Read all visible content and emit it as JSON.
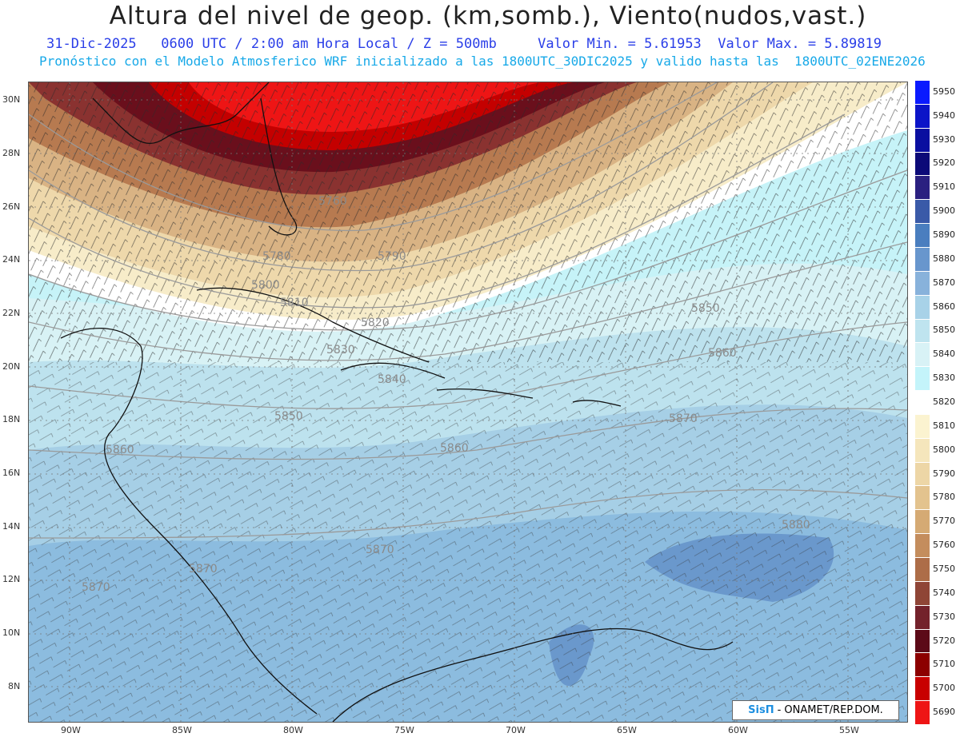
{
  "header": {
    "title": "Altura del nivel de geop. (km,somb.), Viento(nudos,vast.)",
    "line2": "31-Dic-2025   0600 UTC / 2:00 am Hora Local / Z = 500mb     Valor Min. = 5.61953  Valor Max. = 5.89819",
    "line3": "Pronóstico con el Modelo Atmosferico WRF inicializado a las 1800UTC_30DIC2025 y valido hasta las  1800UTC_02ENE2026"
  },
  "map": {
    "lat_ticks": [
      "30N",
      "28N",
      "26N",
      "24N",
      "22N",
      "20N",
      "18N",
      "16N",
      "14N",
      "12N",
      "10N",
      "8N"
    ],
    "lon_ticks": [
      "90W",
      "85W",
      "80W",
      "75W",
      "70W",
      "65W",
      "60W",
      "55W"
    ],
    "contour_labels": [
      "5760",
      "5780",
      "5790",
      "5800",
      "5810",
      "5820",
      "5830",
      "5840",
      "5850",
      "5850",
      "5860",
      "5860",
      "5860",
      "5870",
      "5870",
      "5870",
      "5870",
      "5880"
    ]
  },
  "legend": {
    "levels": [
      "5950",
      "5940",
      "5930",
      "5920",
      "5910",
      "5900",
      "5890",
      "5880",
      "5870",
      "5860",
      "5850",
      "5840",
      "5830",
      "5820",
      "5810",
      "5800",
      "5790",
      "5780",
      "5770",
      "5760",
      "5750",
      "5740",
      "5730",
      "5720",
      "5710",
      "5700",
      "5690"
    ],
    "colors": [
      "#0a1aff",
      "#0b14c8",
      "#0a0fa0",
      "#0c0a78",
      "#2a2080",
      "#3a5aa8",
      "#4a7ebf",
      "#6896cd",
      "#88b2db",
      "#a8d2e8",
      "#bfe4ef",
      "#d8f2f6",
      "#c4f4fa",
      "#ffffff",
      "#fbf3d0",
      "#f5e6bc",
      "#edd6a6",
      "#e3c38e",
      "#d5aa74",
      "#c48d5d",
      "#ad6d48",
      "#8f4536",
      "#73222b",
      "#5c0a18",
      "#8c0000",
      "#c80000",
      "#ee1515"
    ]
  },
  "credit": {
    "brand": "SisΠ",
    "text": "- ONAMET/REP.DOM."
  }
}
